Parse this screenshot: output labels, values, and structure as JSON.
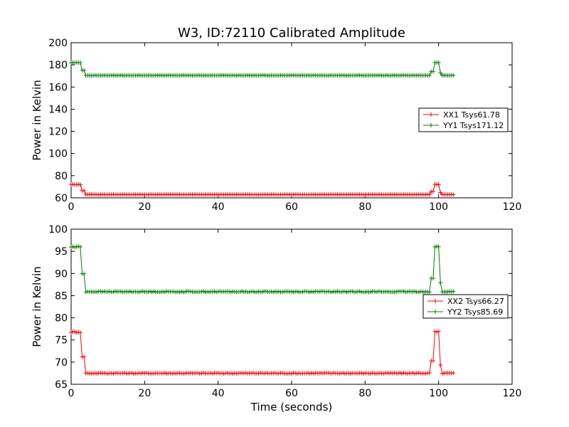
{
  "chart_data": [
    {
      "type": "line",
      "title": "W3, ID:72110 Calibrated Amplitude",
      "xlabel": "",
      "ylabel": "Power in Kelvin",
      "xlim": [
        0,
        120
      ],
      "ylim": [
        60,
        200
      ],
      "xticks": [
        0,
        20,
        40,
        60,
        80,
        100,
        120
      ],
      "yticks": [
        60,
        80,
        100,
        120,
        140,
        160,
        180,
        200
      ],
      "xtick_labels": [
        "0",
        "20",
        "40",
        "60",
        "80",
        "100",
        "120"
      ],
      "ytick_labels": [
        "60",
        "80",
        "100",
        "120",
        "140",
        "160",
        "180",
        "200"
      ],
      "grid": false,
      "legend_position": "center-right",
      "series": [
        {
          "name": "XX1 Tsys61.78",
          "color": "#ff0000",
          "marker": "+",
          "profile": {
            "x_start": 0,
            "x_step": 0.5,
            "x_end": 104,
            "on_high_until": 3,
            "rise_at": 98,
            "fall_at": 100,
            "high_value": 72,
            "low_value": 63
          }
        },
        {
          "name": "YY1 Tsys171.12",
          "color": "#008000",
          "marker": "+",
          "profile": {
            "x_start": 0,
            "x_step": 0.5,
            "x_end": 104,
            "on_high_until": 3,
            "rise_at": 98,
            "fall_at": 100,
            "high_value": 182,
            "low_value": 170.5
          }
        }
      ]
    },
    {
      "type": "line",
      "title": "",
      "xlabel": "Time (seconds)",
      "ylabel": "Power in Kelvin",
      "xlim": [
        0,
        120
      ],
      "ylim": [
        65,
        100
      ],
      "xticks": [
        0,
        20,
        40,
        60,
        80,
        100,
        120
      ],
      "yticks": [
        65,
        70,
        75,
        80,
        85,
        90,
        95,
        100
      ],
      "xtick_labels": [
        "0",
        "20",
        "40",
        "60",
        "80",
        "100",
        "120"
      ],
      "ytick_labels": [
        "65",
        "70",
        "75",
        "80",
        "85",
        "90",
        "95",
        "100"
      ],
      "grid": false,
      "legend_position": "center-right",
      "series": [
        {
          "name": "XX2 Tsys66.27",
          "color": "#ff0000",
          "marker": "+",
          "profile": {
            "x_start": 0,
            "x_step": 0.5,
            "x_end": 104,
            "on_high_until": 3,
            "rise_at": 98,
            "fall_at": 100,
            "high_value": 76.8,
            "low_value": 67.5
          }
        },
        {
          "name": "YY2 Tsys85.69",
          "color": "#008000",
          "marker": "+",
          "profile": {
            "x_start": 0,
            "x_step": 0.5,
            "x_end": 104,
            "on_high_until": 3,
            "rise_at": 98,
            "fall_at": 100,
            "high_value": 96,
            "low_value": 85.9
          }
        }
      ]
    }
  ]
}
